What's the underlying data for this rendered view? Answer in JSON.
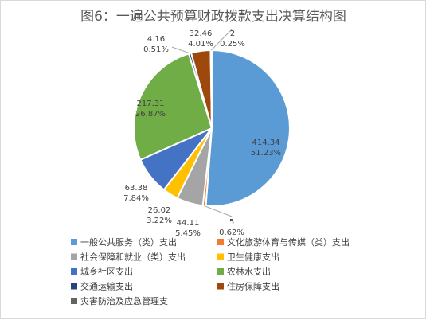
{
  "chart_data": {
    "type": "pie",
    "title": "图6：一遍公共预算财政拨款支出决算结构图",
    "series": [
      {
        "name": "一般公共服务（类）支出",
        "value": 414.34,
        "percent": "51.23%",
        "color": "#5b9bd5",
        "value_label": "414.34",
        "percent_label": "51.23%"
      },
      {
        "name": "文化旅游体育与传媒（类）支出",
        "value": 5,
        "percent": "0.62%",
        "color": "#ed7d31",
        "value_label": "5",
        "percent_label": "0.62%"
      },
      {
        "name": "社会保障和就业（类）支出",
        "value": 44.11,
        "percent": "5.45%",
        "color": "#a5a5a5",
        "value_label": "44.11",
        "percent_label": "5.45%"
      },
      {
        "name": "卫生健康支出",
        "value": 26.02,
        "percent": "3.22%",
        "color": "#ffc000",
        "value_label": "26.02",
        "percent_label": "3.22%"
      },
      {
        "name": "城乡社区支出",
        "value": 63.38,
        "percent": "7.84%",
        "color": "#4472c4",
        "value_label": "63.38",
        "percent_label": "7.84%"
      },
      {
        "name": "农林水支出",
        "value": 217.31,
        "percent": "26.87%",
        "color": "#70ad47",
        "value_label": "217.31",
        "percent_label": "26.87%"
      },
      {
        "name": "交通运输支出",
        "value": 4.16,
        "percent": "0.51%",
        "color": "#264478",
        "value_label": "4.16",
        "percent_label": "0.51%"
      },
      {
        "name": "住房保障支出",
        "value": 32.46,
        "percent": "4.01%",
        "color": "#9e480e",
        "value_label": "32.46",
        "percent_label": "4.01%"
      },
      {
        "name": "灾害防治及应急管理支",
        "value": 2,
        "percent": "0.25%",
        "color": "#636363",
        "value_label": "2",
        "percent_label": "0.25%"
      }
    ],
    "legend_position": "bottom"
  }
}
